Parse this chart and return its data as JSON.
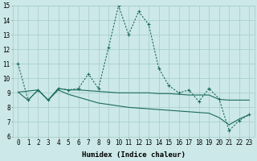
{
  "xlabel": "Humidex (Indice chaleur)",
  "background_color": "#cce8e8",
  "grid_color": "#aacfcf",
  "line_color": "#1a6b5a",
  "xlim": [
    -0.5,
    23.5
  ],
  "ylim": [
    6,
    15
  ],
  "xticks": [
    0,
    1,
    2,
    3,
    4,
    5,
    6,
    7,
    8,
    9,
    10,
    11,
    12,
    13,
    14,
    15,
    16,
    17,
    18,
    19,
    20,
    21,
    22,
    23
  ],
  "yticks": [
    6,
    7,
    8,
    9,
    10,
    11,
    12,
    13,
    14,
    15
  ],
  "series1_x": [
    0,
    1,
    2,
    3,
    4,
    5,
    6,
    7,
    8,
    9,
    10,
    11,
    12,
    13,
    14,
    15,
    16,
    17,
    18,
    19,
    20,
    21,
    22,
    23
  ],
  "series1_y": [
    11.0,
    8.5,
    9.2,
    8.5,
    9.3,
    9.2,
    9.3,
    10.3,
    9.3,
    12.1,
    15.0,
    13.0,
    14.6,
    13.7,
    10.7,
    9.5,
    9.0,
    9.2,
    8.4,
    9.3,
    8.6,
    6.4,
    7.1,
    7.5
  ],
  "series2_x": [
    0,
    2,
    3,
    4,
    5,
    6,
    7,
    8,
    9,
    10,
    11,
    12,
    13,
    14,
    15,
    16,
    17,
    18,
    19,
    20,
    21,
    22,
    23
  ],
  "series2_y": [
    9.05,
    9.2,
    8.5,
    9.3,
    9.2,
    9.2,
    9.15,
    9.1,
    9.05,
    9.0,
    9.0,
    9.0,
    9.0,
    8.95,
    8.95,
    8.9,
    8.85,
    8.85,
    8.85,
    8.55,
    8.5,
    8.5,
    8.5
  ],
  "series3_x": [
    0,
    1,
    2,
    3,
    4,
    5,
    6,
    7,
    8,
    9,
    10,
    11,
    12,
    13,
    14,
    15,
    16,
    17,
    18,
    19,
    20,
    21,
    22,
    23
  ],
  "series3_y": [
    9.05,
    8.5,
    9.2,
    8.5,
    9.2,
    8.9,
    8.7,
    8.5,
    8.3,
    8.2,
    8.1,
    8.0,
    7.95,
    7.9,
    7.85,
    7.8,
    7.75,
    7.7,
    7.65,
    7.6,
    7.3,
    6.8,
    7.2,
    7.5
  ],
  "fontsize_label": 6.5,
  "fontsize_tick": 5.5
}
